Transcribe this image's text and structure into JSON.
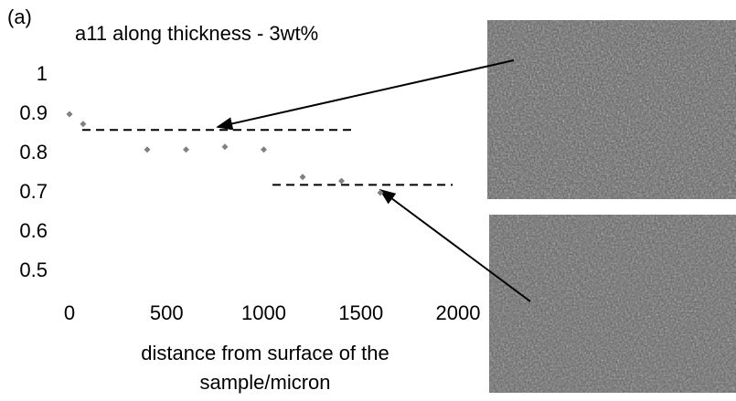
{
  "chart_data": {
    "type": "scatter",
    "panel_label": "(a)",
    "title": "a11 along thickness - 3wt%",
    "xlabel": [
      "distance from surface of the",
      "sample/micron"
    ],
    "x": [
      0,
      70,
      400,
      600,
      800,
      1000,
      1200,
      1400,
      1600
    ],
    "series": [
      {
        "color": "#808080",
        "values": [
          0.9,
          0.875,
          0.81,
          0.81,
          0.817,
          0.81,
          0.74,
          0.73,
          0.7
        ]
      }
    ],
    "xlim": [
      0,
      2000
    ],
    "xticks": [
      0,
      500,
      1000,
      1500,
      2000
    ],
    "ylim": [
      0.5,
      1
    ],
    "yticks": [
      0.5,
      0.6,
      0.7,
      0.8,
      0.9,
      1
    ],
    "reference_lines": [
      {
        "y": 0.86,
        "x": [
          66,
          1454
        ]
      },
      {
        "y": 0.72,
        "x": [
          1045,
          1972
        ]
      }
    ]
  }
}
